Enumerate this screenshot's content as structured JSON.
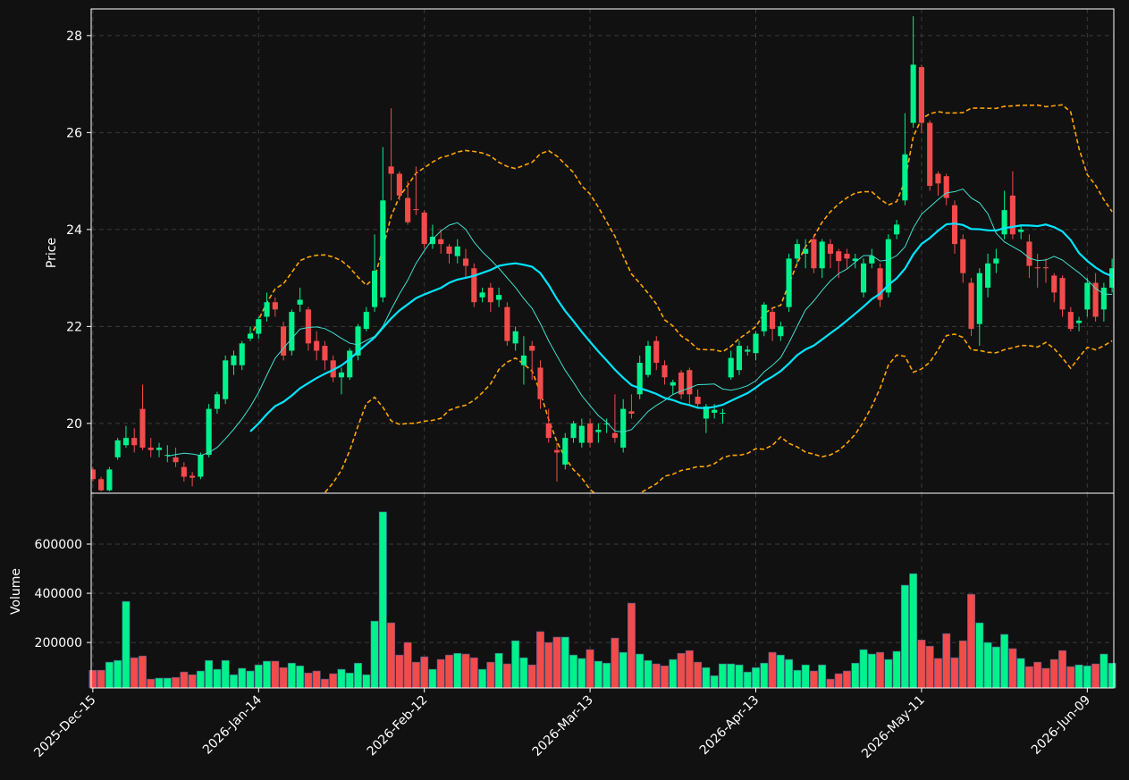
{
  "chart_data": {
    "type": "candlestick",
    "ylabel": "Price",
    "volume_ylabel": "Volume",
    "xlim": [
      -0.2,
      123.2
    ],
    "xticks": [
      {
        "value": 0,
        "label": "2025-Dec-15"
      },
      {
        "value": 20,
        "label": "2026-Jan-14"
      },
      {
        "value": 40,
        "label": "2026-Feb-12"
      },
      {
        "value": 60,
        "label": "2026-Mar-13"
      },
      {
        "value": 80,
        "label": "2026-Apr-13"
      },
      {
        "value": 100,
        "label": "2026-May-11"
      },
      {
        "value": 120,
        "label": "2026-Jun-09"
      }
    ],
    "ylim": [
      18.56,
      28.55
    ],
    "yticks": [
      20,
      22,
      24,
      26,
      28
    ],
    "volume_ylim": [
      15000,
      807000
    ],
    "volume_yticks": [
      200000,
      400000,
      600000
    ],
    "grid": true,
    "up_color": "#00f28c",
    "down_color": "#f24b4b",
    "mav": [
      10,
      20
    ],
    "mav_colors": [
      "#40e0d0",
      "#00e5ff"
    ],
    "bollinger": {
      "window": 20,
      "std": 2,
      "color": "#ffa500"
    },
    "open": [
      19.05,
      18.85,
      18.62,
      19.3,
      19.55,
      19.7,
      20.3,
      19.5,
      19.45,
      19.35,
      19.3,
      19.1,
      18.92,
      18.9,
      19.35,
      20.3,
      20.5,
      21.2,
      21.2,
      21.75,
      21.85,
      22.2,
      22.5,
      22.0,
      21.5,
      22.45,
      22.35,
      21.7,
      21.6,
      21.3,
      20.95,
      20.95,
      21.4,
      21.95,
      22.4,
      22.6,
      25.3,
      25.15,
      24.65,
      24.42,
      24.35,
      23.7,
      23.8,
      23.65,
      23.45,
      23.4,
      23.2,
      22.6,
      22.8,
      22.55,
      22.4,
      21.65,
      21.2,
      21.6,
      21.15,
      20.0,
      19.45,
      19.15,
      19.7,
      19.6,
      20.0,
      19.82,
      20.0,
      19.8,
      19.5,
      20.25,
      20.6,
      21.0,
      21.7,
      21.2,
      20.78,
      21.05,
      21.1,
      20.55,
      20.1,
      20.22,
      20.2,
      20.95,
      21.1,
      21.48,
      21.45,
      21.9,
      22.3,
      21.8,
      22.4,
      23.4,
      23.5,
      23.8,
      23.2,
      23.7,
      23.55,
      23.5,
      23.35,
      22.7,
      23.3,
      23.2,
      22.7,
      23.9,
      24.6,
      26.2,
      27.35,
      26.2,
      25.15,
      25.1,
      24.5,
      23.8,
      22.9,
      22.05,
      22.8,
      23.3,
      23.9,
      24.7,
      23.95,
      23.75,
      23.22,
      23.22,
      23.05,
      23.0,
      22.3,
      22.07,
      22.35,
      22.9,
      22.35,
      22.8
    ],
    "high": [
      19.1,
      18.9,
      19.1,
      19.7,
      19.95,
      19.9,
      20.8,
      19.7,
      19.6,
      19.55,
      19.5,
      19.2,
      19.0,
      19.4,
      20.4,
      20.65,
      21.4,
      21.5,
      21.7,
      22.0,
      22.2,
      22.7,
      22.6,
      22.1,
      22.35,
      22.8,
      22.4,
      21.9,
      21.7,
      21.4,
      21.15,
      21.55,
      22.05,
      22.4,
      23.9,
      25.7,
      26.5,
      25.2,
      25.0,
      25.3,
      24.4,
      24.1,
      24.0,
      23.7,
      23.8,
      23.6,
      23.3,
      22.8,
      22.9,
      22.8,
      22.5,
      22.0,
      21.8,
      21.7,
      21.3,
      20.3,
      19.6,
      19.8,
      20.05,
      20.1,
      20.1,
      20.0,
      20.1,
      20.6,
      20.5,
      20.6,
      21.4,
      21.7,
      21.8,
      21.3,
      20.9,
      21.1,
      21.15,
      20.7,
      20.4,
      20.4,
      20.3,
      21.5,
      21.7,
      21.6,
      21.9,
      22.5,
      22.4,
      22.1,
      23.5,
      23.8,
      23.8,
      23.9,
      23.8,
      23.8,
      23.6,
      23.6,
      23.5,
      23.4,
      23.6,
      23.3,
      23.9,
      24.2,
      26.4,
      28.4,
      27.4,
      26.25,
      25.2,
      25.15,
      24.6,
      23.9,
      23.0,
      23.2,
      23.5,
      23.6,
      24.8,
      25.2,
      24.1,
      23.9,
      23.5,
      23.4,
      23.1,
      23.05,
      22.4,
      22.2,
      23.0,
      23.1,
      22.9,
      23.4
    ],
    "low": [
      18.8,
      18.6,
      18.6,
      19.25,
      19.5,
      19.4,
      19.45,
      19.3,
      19.3,
      19.2,
      19.1,
      18.8,
      18.7,
      18.85,
      19.3,
      20.2,
      20.4,
      21.0,
      21.1,
      21.7,
      21.75,
      22.1,
      22.2,
      21.3,
      21.4,
      22.3,
      21.5,
      21.3,
      21.1,
      20.85,
      20.6,
      20.9,
      21.3,
      21.9,
      22.3,
      22.5,
      24.6,
      24.6,
      24.1,
      24.3,
      23.6,
      23.6,
      23.5,
      23.3,
      23.3,
      23.0,
      22.4,
      22.5,
      22.3,
      22.4,
      21.6,
      21.5,
      20.8,
      20.9,
      20.3,
      19.6,
      18.8,
      19.05,
      19.6,
      19.5,
      19.5,
      19.6,
      19.8,
      19.6,
      19.4,
      20.1,
      20.5,
      20.95,
      21.1,
      20.8,
      20.6,
      20.5,
      20.4,
      20.3,
      19.8,
      20.1,
      20.0,
      20.9,
      21.0,
      21.4,
      21.3,
      21.8,
      21.7,
      21.7,
      22.3,
      23.3,
      23.2,
      23.1,
      23.0,
      23.2,
      23.0,
      23.2,
      23.2,
      22.6,
      23.2,
      22.4,
      22.6,
      23.8,
      24.5,
      26.1,
      26.0,
      24.8,
      24.7,
      24.5,
      23.5,
      22.9,
      21.8,
      21.6,
      22.6,
      23.1,
      23.8,
      23.8,
      23.8,
      23.0,
      22.8,
      22.9,
      22.5,
      22.2,
      21.9,
      21.9,
      22.2,
      22.1,
      22.1,
      22.7
    ],
    "close": [
      18.85,
      18.62,
      19.05,
      19.65,
      19.7,
      19.55,
      19.5,
      19.45,
      19.5,
      19.35,
      19.2,
      18.9,
      18.88,
      19.35,
      20.3,
      20.6,
      21.3,
      21.4,
      21.65,
      21.85,
      22.15,
      22.5,
      22.35,
      21.4,
      22.3,
      22.55,
      21.65,
      21.5,
      21.3,
      20.95,
      21.05,
      21.5,
      22.0,
      22.3,
      23.15,
      24.6,
      25.15,
      24.7,
      24.15,
      24.4,
      23.7,
      23.85,
      23.7,
      23.5,
      23.65,
      23.25,
      22.5,
      22.7,
      22.5,
      22.65,
      21.7,
      21.9,
      21.4,
      21.5,
      20.5,
      19.7,
      19.4,
      19.7,
      20.0,
      19.95,
      19.6,
      19.87,
      20.0,
      19.7,
      20.3,
      20.2,
      21.25,
      21.6,
      21.25,
      20.95,
      20.85,
      20.6,
      20.6,
      20.4,
      20.35,
      20.28,
      20.22,
      21.35,
      21.6,
      21.52,
      21.85,
      22.45,
      21.95,
      22.0,
      23.4,
      23.7,
      23.6,
      23.2,
      23.75,
      23.5,
      23.35,
      23.4,
      23.4,
      23.3,
      23.45,
      22.55,
      23.8,
      24.1,
      25.55,
      27.4,
      26.2,
      24.9,
      24.95,
      24.65,
      23.7,
      23.1,
      21.95,
      23.1,
      23.3,
      23.4,
      24.4,
      23.9,
      24.0,
      23.25,
      23.2,
      23.2,
      22.7,
      22.35,
      21.95,
      22.12,
      22.9,
      22.2,
      22.8,
      23.2
    ],
    "volume": [
      87000,
      87000,
      120000,
      127000,
      367000,
      138000,
      145000,
      51000,
      55000,
      55000,
      58000,
      80000,
      69000,
      84000,
      127000,
      91000,
      127000,
      69000,
      95000,
      84000,
      109000,
      124000,
      124000,
      98000,
      116000,
      105000,
      76000,
      84000,
      51000,
      73000,
      91000,
      76000,
      116000,
      69000,
      287000,
      731000,
      280000,
      149000,
      200000,
      120000,
      142000,
      91000,
      131000,
      149000,
      156000,
      153000,
      138000,
      91000,
      120000,
      156000,
      113000,
      207000,
      138000,
      109000,
      244000,
      200000,
      222000,
      222000,
      149000,
      135000,
      171000,
      124000,
      116000,
      218000,
      160000,
      360000,
      153000,
      127000,
      113000,
      105000,
      131000,
      156000,
      167000,
      120000,
      98000,
      65000,
      113000,
      113000,
      109000,
      80000,
      98000,
      116000,
      160000,
      149000,
      131000,
      87000,
      109000,
      84000,
      109000,
      51000,
      73000,
      84000,
      116000,
      171000,
      153000,
      160000,
      131000,
      164000,
      433000,
      480000,
      210000,
      185000,
      135000,
      236000,
      138000,
      207000,
      396000,
      280000,
      200000,
      182000,
      233000,
      175000,
      135000,
      102000,
      120000,
      95000,
      131000,
      167000,
      102000,
      109000,
      105000,
      113000,
      153000,
      116000
    ]
  }
}
